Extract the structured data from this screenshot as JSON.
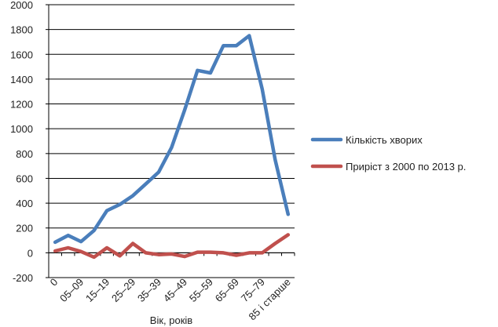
{
  "chart_data": {
    "type": "line",
    "title": "",
    "xlabel": "Вік, років",
    "ylabel": "",
    "ylim": [
      -200,
      2000
    ],
    "yticks": [
      -200,
      0,
      200,
      400,
      600,
      800,
      1000,
      1200,
      1400,
      1600,
      1800,
      2000
    ],
    "grid": true,
    "legend_position": "right",
    "categories": [
      "0",
      "",
      "05–09",
      "",
      "15–19",
      "",
      "25–29",
      "",
      "35–39",
      "",
      "45–49",
      "",
      "55–59",
      "",
      "65–69",
      "",
      "75–79",
      "",
      "85 і старше"
    ],
    "series": [
      {
        "name": "Кількість хворих",
        "color": "#4a7ebb",
        "values": [
          85,
          140,
          90,
          180,
          340,
          390,
          460,
          555,
          650,
          850,
          1150,
          1470,
          1450,
          1670,
          1670,
          1750,
          1320,
          750,
          310
        ]
      },
      {
        "name": "Приріст з 2000 по 2013 р.",
        "color": "#c0504d",
        "values": [
          15,
          40,
          10,
          -35,
          40,
          -25,
          75,
          0,
          -15,
          -10,
          -30,
          5,
          5,
          0,
          -20,
          0,
          0,
          75,
          145
        ]
      }
    ]
  }
}
